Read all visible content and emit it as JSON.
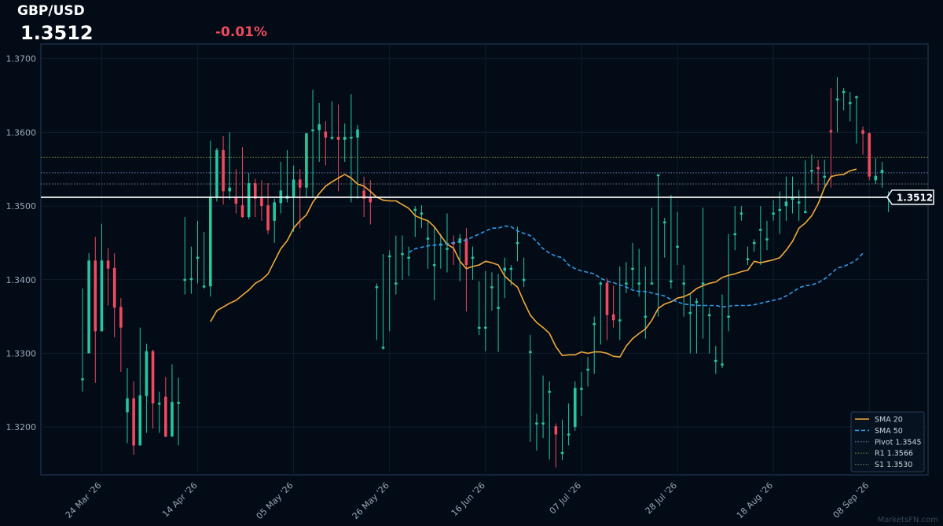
{
  "header": {
    "symbol": "GBP/USD",
    "last_price": "1.3512",
    "change": "-0.01%"
  },
  "colors": {
    "background": "#020b16",
    "up": "#26c6a0",
    "down": "#ef4a5f",
    "sma20": "#f2a93b",
    "sma50": "#2f9be8",
    "pivot": "#6f7fb8",
    "r1": "#8a9a3a",
    "s1": "#7a7a7a",
    "price_line": "#ffffff",
    "change": "#ef4a5f"
  },
  "watermark": "MarketsFN.com",
  "chart_data": {
    "type": "candlestick",
    "y_ticks": [
      "1.3200",
      "1.3300",
      "1.3400",
      "1.3500",
      "1.3600",
      "1.3700"
    ],
    "ylim": [
      1.3135,
      1.372
    ],
    "x_ticks": [
      {
        "label": "24 Mar '26",
        "index": 3
      },
      {
        "label": "14 Apr '26",
        "index": 18
      },
      {
        "label": "05 May '26",
        "index": 33
      },
      {
        "label": "26 May '26",
        "index": 48
      },
      {
        "label": "16 Jun '26",
        "index": 63
      },
      {
        "label": "07 Jul '26",
        "index": 78
      },
      {
        "label": "28 Jul '26",
        "index": 93
      },
      {
        "label": "18 Aug '26",
        "index": 108
      },
      {
        "label": "08 Sep '26",
        "index": 123
      }
    ],
    "ohlc": [
      [
        1.3265,
        1.3388,
        1.3248,
        1.3265
      ],
      [
        1.33,
        1.3436,
        1.33,
        1.3425
      ],
      [
        1.3425,
        1.3458,
        1.326,
        1.333
      ],
      [
        1.333,
        1.3476,
        1.333,
        1.3425
      ],
      [
        1.3425,
        1.3443,
        1.3365,
        1.3415
      ],
      [
        1.3415,
        1.3436,
        1.3322,
        1.3362
      ],
      [
        1.3362,
        1.3375,
        1.3275,
        1.3335
      ],
      [
        1.322,
        1.328,
        1.3178,
        1.3238
      ],
      [
        1.3238,
        1.3262,
        1.3162,
        1.3175
      ],
      [
        1.3175,
        1.3335,
        1.3175,
        1.3242
      ],
      [
        1.3242,
        1.3313,
        1.3192,
        1.3302
      ],
      [
        1.3302,
        1.3305,
        1.3198,
        1.3232
      ],
      [
        1.3232,
        1.3248,
        1.3192,
        1.3232
      ],
      [
        1.324,
        1.3268,
        1.3186,
        1.3187
      ],
      [
        1.3187,
        1.3285,
        1.3187,
        1.3233
      ],
      [
        1.3233,
        1.3267,
        1.3175,
        1.3233
      ],
      [
        1.34,
        1.3485,
        1.338,
        1.34
      ],
      [
        1.34,
        1.3445,
        1.3381,
        1.3401
      ],
      [
        1.343,
        1.348,
        1.3395,
        1.343
      ],
      [
        1.3391,
        1.3465,
        1.3388,
        1.3391
      ],
      [
        1.3391,
        1.3589,
        1.3377,
        1.3512
      ],
      [
        1.3512,
        1.3579,
        1.3506,
        1.3575
      ],
      [
        1.3575,
        1.3595,
        1.3502,
        1.352
      ],
      [
        1.352,
        1.36,
        1.3509,
        1.3524
      ],
      [
        1.351,
        1.355,
        1.349,
        1.3503
      ],
      [
        1.35,
        1.358,
        1.3484,
        1.3485
      ],
      [
        1.3485,
        1.3545,
        1.3482,
        1.353
      ],
      [
        1.353,
        1.3537,
        1.3485,
        1.351
      ],
      [
        1.351,
        1.3535,
        1.348,
        1.35
      ],
      [
        1.35,
        1.3531,
        1.3462,
        1.3467
      ],
      [
        1.348,
        1.351,
        1.345,
        1.3504
      ],
      [
        1.3504,
        1.356,
        1.349,
        1.352
      ],
      [
        1.351,
        1.3576,
        1.3505,
        1.3513
      ],
      [
        1.3513,
        1.3555,
        1.3465,
        1.3535
      ],
      [
        1.3535,
        1.355,
        1.347,
        1.3525
      ],
      [
        1.3525,
        1.3598,
        1.3512,
        1.3598
      ],
      [
        1.3603,
        1.3658,
        1.3512,
        1.3603
      ],
      [
        1.3603,
        1.364,
        1.356,
        1.361
      ],
      [
        1.36,
        1.3615,
        1.3555,
        1.3593
      ],
      [
        1.3593,
        1.3642,
        1.359,
        1.3593
      ],
      [
        1.3593,
        1.3638,
        1.352,
        1.359
      ],
      [
        1.359,
        1.3612,
        1.356,
        1.3593
      ],
      [
        1.3593,
        1.3652,
        1.3505,
        1.3593
      ],
      [
        1.3593,
        1.361,
        1.351,
        1.3603
      ],
      [
        1.352,
        1.354,
        1.3485,
        1.351
      ],
      [
        1.351,
        1.3535,
        1.3475,
        1.3505
      ],
      [
        1.339,
        1.3395,
        1.3318,
        1.339
      ],
      [
        1.3308,
        1.3435,
        1.3305,
        1.3308
      ],
      [
        1.3432,
        1.344,
        1.333,
        1.3432
      ],
      [
        1.3395,
        1.346,
        1.338,
        1.3395
      ],
      [
        1.3435,
        1.346,
        1.34,
        1.3435
      ],
      [
        1.343,
        1.3445,
        1.3405,
        1.343
      ]
    ],
    "ohlc_cont": [
      [
        1.3495,
        1.35,
        1.3458,
        1.3495
      ],
      [
        1.349,
        1.3501,
        1.347,
        1.349
      ],
      [
        1.3456,
        1.348,
        1.3415,
        1.3456
      ],
      [
        1.342,
        1.3472,
        1.3372,
        1.342
      ],
      [
        1.3448,
        1.3462,
        1.3415,
        1.3448
      ],
      [
        1.3442,
        1.349,
        1.341,
        1.3442
      ],
      [
        1.345,
        1.346,
        1.342,
        1.3448
      ],
      [
        1.345,
        1.3462,
        1.3398,
        1.3455
      ],
      [
        1.3455,
        1.347,
        1.3357,
        1.342
      ],
      [
        1.343,
        1.3445,
        1.34,
        1.343
      ],
      [
        1.3335,
        1.3398,
        1.3325,
        1.3335
      ],
      [
        1.3335,
        1.3412,
        1.3303,
        1.3335
      ],
      [
        1.339,
        1.341,
        1.3358,
        1.339
      ],
      [
        1.3362,
        1.3408,
        1.3302,
        1.3362
      ],
      [
        1.3412,
        1.343,
        1.3375,
        1.3415
      ],
      [
        1.3415,
        1.342,
        1.3392,
        1.3415
      ],
      [
        1.345,
        1.3472,
        1.3425,
        1.345
      ],
      [
        1.34,
        1.343,
        1.339,
        1.34
      ],
      [
        1.3302,
        1.3325,
        1.318,
        1.3302
      ],
      [
        1.3205,
        1.3218,
        1.3168,
        1.3205
      ],
      [
        1.3205,
        1.327,
        1.3185,
        1.3205
      ],
      [
        1.3248,
        1.3262,
        1.3156,
        1.3248
      ],
      [
        1.32,
        1.3205,
        1.3145,
        1.319
      ],
      [
        1.3165,
        1.321,
        1.3155,
        1.3165
      ],
      [
        1.319,
        1.3232,
        1.3175,
        1.319
      ],
      [
        1.32,
        1.3262,
        1.3195,
        1.3252
      ],
      [
        1.3252,
        1.3275,
        1.3215,
        1.3252
      ],
      [
        1.3278,
        1.3295,
        1.3255,
        1.3278
      ],
      [
        1.334,
        1.335,
        1.3272,
        1.334
      ],
      [
        1.3395,
        1.3398,
        1.3312,
        1.3395
      ],
      [
        1.3395,
        1.3402,
        1.3318,
        1.3352
      ],
      [
        1.3352,
        1.3392,
        1.3335,
        1.3345
      ],
      [
        1.3345,
        1.3418,
        1.3318,
        1.3345
      ],
      [
        1.3395,
        1.3424,
        1.3382,
        1.3395
      ],
      [
        1.3415,
        1.345,
        1.3388,
        1.3415
      ],
      [
        1.3395,
        1.3442,
        1.3377,
        1.3395
      ],
      [
        1.335,
        1.3418,
        1.332,
        1.335
      ],
      [
        1.3395,
        1.3498,
        1.3395,
        1.3395
      ],
      [
        1.3542,
        1.3542,
        1.335,
        1.3542
      ],
      [
        1.3478,
        1.3484,
        1.343,
        1.3478
      ],
      [
        1.3398,
        1.3515,
        1.3388,
        1.3398
      ],
      [
        1.3445,
        1.3492,
        1.342,
        1.3445
      ],
      [
        1.3395,
        1.342,
        1.335,
        1.3395
      ],
      [
        1.3355,
        1.338,
        1.33,
        1.3355
      ],
      [
        1.337,
        1.3375,
        1.33,
        1.337
      ],
      [
        1.3395,
        1.3498,
        1.332,
        1.3395
      ],
      [
        1.3352,
        1.3362,
        1.33,
        1.3352
      ],
      [
        1.329,
        1.331,
        1.3272,
        1.329
      ]
    ],
    "ohlc_tail": [
      [
        1.3285,
        1.338,
        1.328,
        1.3285
      ],
      [
        1.335,
        1.3462,
        1.333,
        1.335
      ],
      [
        1.3462,
        1.35,
        1.344,
        1.3462
      ],
      [
        1.349,
        1.35,
        1.348,
        1.349
      ],
      [
        1.3428,
        1.3445,
        1.342,
        1.3428
      ],
      [
        1.345,
        1.3455,
        1.3438,
        1.345
      ],
      [
        1.3468,
        1.35,
        1.342,
        1.3468
      ],
      [
        1.3455,
        1.348,
        1.344,
        1.3455
      ],
      [
        1.349,
        1.3508,
        1.348,
        1.349
      ],
      [
        1.3495,
        1.352,
        1.3462,
        1.3495
      ],
      [
        1.35,
        1.354,
        1.348,
        1.3505
      ],
      [
        1.351,
        1.354,
        1.349,
        1.351
      ],
      [
        1.3505,
        1.3522,
        1.348,
        1.3505
      ],
      [
        1.3492,
        1.3562,
        1.349,
        1.3492
      ],
      [
        1.3548,
        1.357,
        1.353,
        1.3548
      ],
      [
        1.3552,
        1.3563,
        1.352,
        1.355
      ],
      [
        1.354,
        1.3563,
        1.3528,
        1.354
      ],
      [
        1.3602,
        1.366,
        1.3525,
        1.36
      ],
      [
        1.3645,
        1.3675,
        1.36,
        1.3645
      ],
      [
        1.3655,
        1.366,
        1.363,
        1.3655
      ],
      [
        1.364,
        1.3655,
        1.3615,
        1.364
      ],
      [
        1.3648,
        1.365,
        1.3585,
        1.3648
      ],
      [
        1.3602,
        1.3608,
        1.357,
        1.3598
      ],
      [
        1.3598,
        1.36,
        1.3535,
        1.354
      ],
      [
        1.3535,
        1.3565,
        1.353,
        1.354
      ],
      [
        1.3545,
        1.356,
        1.3525,
        1.3548
      ],
      [
        1.3512,
        1.352,
        1.3492,
        1.3512
      ]
    ],
    "series": [
      {
        "name": "SMA 20",
        "start_index": 20,
        "values": [
          1.3343,
          1.3358,
          1.3363,
          1.3368,
          1.3372,
          1.3379,
          1.3386,
          1.3395,
          1.34,
          1.3408,
          1.3425,
          1.3442,
          1.3453,
          1.347,
          1.348,
          1.3488,
          1.3505,
          1.3517,
          1.3527,
          1.3533,
          1.3538,
          1.3543,
          1.3538,
          1.353,
          1.3527,
          1.352,
          1.3512,
          1.3508,
          1.3507,
          1.3507,
          1.3502,
          1.3497,
          1.3487,
          1.3483,
          1.348,
          1.3472,
          1.346,
          1.3448,
          1.3443,
          1.3425,
          1.3415,
          1.3418,
          1.342,
          1.3425,
          1.3423,
          1.342,
          1.3405,
          1.3397,
          1.339,
          1.337,
          1.3352,
          1.3342,
          1.3335,
          1.3327,
          1.3309,
          1.3297,
          1.3298,
          1.3298,
          1.3302,
          1.33,
          1.3302,
          1.3302,
          1.33,
          1.3296,
          1.3295,
          1.331,
          1.332,
          1.3327,
          1.3333,
          1.3345,
          1.3361,
          1.3367,
          1.337,
          1.3375,
          1.3377,
          1.3381,
          1.3388,
          1.3392,
          1.3395,
          1.3397,
          1.3403,
          1.3406,
          1.3408,
          1.3411,
          1.3413,
          1.3425,
          1.3423,
          1.3425,
          1.3427,
          1.343,
          1.344,
          1.3452,
          1.347,
          1.3477,
          1.3487,
          1.3503,
          1.3525,
          1.354,
          1.3542,
          1.3543,
          1.3548,
          1.355
        ]
      },
      {
        "name": "SMA 50",
        "start_index": 51,
        "values": [
          1.3437,
          1.3442,
          1.3444,
          1.3446,
          1.3447,
          1.3447,
          1.3449,
          1.345,
          1.3452,
          1.3454,
          1.3458,
          1.3462,
          1.3466,
          1.347,
          1.347,
          1.3473,
          1.3472,
          1.3466,
          1.3463,
          1.346,
          1.3452,
          1.3442,
          1.3436,
          1.3432,
          1.343,
          1.342,
          1.3415,
          1.3412,
          1.341,
          1.3408,
          1.3402,
          1.3398,
          1.3396,
          1.3393,
          1.339,
          1.3386,
          1.3384,
          1.3384,
          1.3382,
          1.338,
          1.3378,
          1.3373,
          1.337,
          1.3367,
          1.3366,
          1.3365,
          1.3365,
          1.3365,
          1.3365,
          1.3363,
          1.3364,
          1.3365,
          1.3365,
          1.3365,
          1.3366,
          1.3368,
          1.337,
          1.3372,
          1.3374,
          1.3378,
          1.3383,
          1.3389,
          1.3392,
          1.3393,
          1.3396,
          1.3401,
          1.3408,
          1.3416,
          1.3418,
          1.3422,
          1.3427,
          1.3436
        ]
      }
    ],
    "levels": [
      {
        "name": "Pivot 1.3545",
        "value": 1.3545,
        "style": "dotted"
      },
      {
        "name": "R1 1.3566",
        "value": 1.3566,
        "style": "dotted"
      },
      {
        "name": "S1 1.3530",
        "value": 1.353,
        "style": "dotted"
      }
    ],
    "last_price": {
      "value": 1.3512,
      "label": "1.3512"
    },
    "legend": [
      "SMA 20",
      "SMA 50",
      "Pivot 1.3545",
      "R1 1.3566",
      "S1 1.3530"
    ],
    "legend_position": "bottom-right",
    "grid": true
  }
}
